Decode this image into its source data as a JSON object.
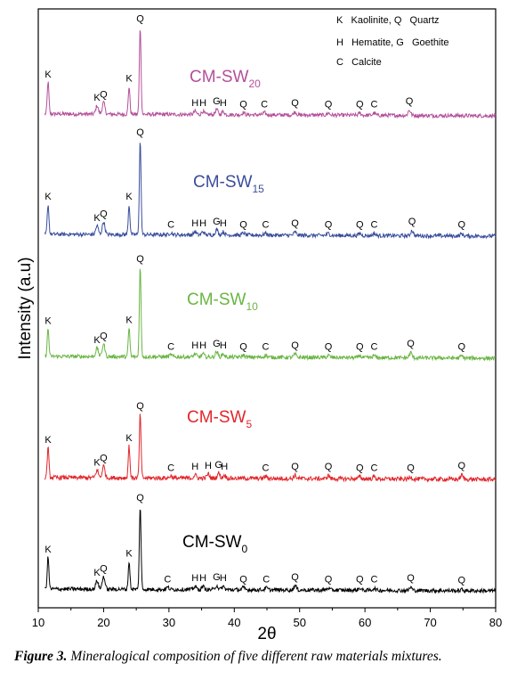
{
  "chart_data": {
    "type": "line",
    "title": "",
    "xlabel": "2θ",
    "ylabel": "Intensity (a.u)",
    "xlim": [
      10,
      80
    ],
    "xticks": [
      10,
      20,
      30,
      40,
      50,
      60,
      70,
      80
    ],
    "legend": {
      "placement": "top-right",
      "entries": [
        "K   Kaolinite, Q   Quartz",
        "H   Hematite, G   Goethite",
        "C   Calcite"
      ]
    },
    "series": [
      {
        "name": "CM-SW",
        "sub": "20",
        "color": "#b4509a",
        "baseline": 0.06,
        "noise": 0.018,
        "peaks": [
          {
            "x": 11.5,
            "h": 0.3,
            "label": "K"
          },
          {
            "x": 19.0,
            "h": 0.08,
            "label": "K"
          },
          {
            "x": 20.0,
            "h": 0.11,
            "label": "Q"
          },
          {
            "x": 23.9,
            "h": 0.26,
            "label": "K"
          },
          {
            "x": 25.6,
            "h": 0.82,
            "label": "Q"
          },
          {
            "x": 34.0,
            "h": 0.03,
            "label": "H"
          },
          {
            "x": 35.2,
            "h": 0.03,
            "label": "H"
          },
          {
            "x": 37.3,
            "h": 0.05,
            "label": "G"
          },
          {
            "x": 38.3,
            "h": 0.03,
            "label": "H"
          },
          {
            "x": 41.4,
            "h": 0.02,
            "label": "Q"
          },
          {
            "x": 44.6,
            "h": 0.02,
            "label": "C"
          },
          {
            "x": 49.3,
            "h": 0.03,
            "label": "Q"
          },
          {
            "x": 54.4,
            "h": 0.02,
            "label": "Q"
          },
          {
            "x": 59.2,
            "h": 0.02,
            "label": "Q"
          },
          {
            "x": 61.4,
            "h": 0.02,
            "label": "C"
          },
          {
            "x": 66.8,
            "h": 0.05,
            "label": "Q"
          }
        ]
      },
      {
        "name": "CM-SW",
        "sub": "15",
        "color": "#3a4d9b",
        "baseline": 0.06,
        "noise": 0.018,
        "peaks": [
          {
            "x": 11.5,
            "h": 0.28,
            "label": "K"
          },
          {
            "x": 19.0,
            "h": 0.08,
            "label": "K"
          },
          {
            "x": 20.0,
            "h": 0.12,
            "label": "Q"
          },
          {
            "x": 23.9,
            "h": 0.28,
            "label": "K"
          },
          {
            "x": 25.6,
            "h": 0.88,
            "label": "Q"
          },
          {
            "x": 30.3,
            "h": 0.02,
            "label": "C"
          },
          {
            "x": 34.0,
            "h": 0.03,
            "label": "H"
          },
          {
            "x": 35.2,
            "h": 0.03,
            "label": "H"
          },
          {
            "x": 37.3,
            "h": 0.05,
            "label": "G"
          },
          {
            "x": 38.3,
            "h": 0.03,
            "label": "H"
          },
          {
            "x": 41.4,
            "h": 0.02,
            "label": "Q"
          },
          {
            "x": 44.8,
            "h": 0.02,
            "label": "C"
          },
          {
            "x": 49.3,
            "h": 0.03,
            "label": "Q"
          },
          {
            "x": 54.4,
            "h": 0.02,
            "label": "Q"
          },
          {
            "x": 59.2,
            "h": 0.02,
            "label": "Q"
          },
          {
            "x": 61.4,
            "h": 0.02,
            "label": "C"
          },
          {
            "x": 67.2,
            "h": 0.05,
            "label": "Q"
          },
          {
            "x": 74.8,
            "h": 0.02,
            "label": "Q"
          }
        ]
      },
      {
        "name": "CM-SW",
        "sub": "10",
        "color": "#6ab544",
        "baseline": 0.06,
        "noise": 0.018,
        "peaks": [
          {
            "x": 11.5,
            "h": 0.26,
            "label": "K"
          },
          {
            "x": 19.0,
            "h": 0.08,
            "label": "K"
          },
          {
            "x": 20.0,
            "h": 0.12,
            "label": "Q"
          },
          {
            "x": 23.9,
            "h": 0.27,
            "label": "K"
          },
          {
            "x": 25.6,
            "h": 0.84,
            "label": "Q"
          },
          {
            "x": 30.3,
            "h": 0.02,
            "label": "C"
          },
          {
            "x": 34.0,
            "h": 0.03,
            "label": "H"
          },
          {
            "x": 35.2,
            "h": 0.03,
            "label": "H"
          },
          {
            "x": 37.3,
            "h": 0.05,
            "label": "G"
          },
          {
            "x": 38.3,
            "h": 0.03,
            "label": "H"
          },
          {
            "x": 41.4,
            "h": 0.02,
            "label": "Q"
          },
          {
            "x": 44.8,
            "h": 0.02,
            "label": "C"
          },
          {
            "x": 49.3,
            "h": 0.03,
            "label": "Q"
          },
          {
            "x": 54.4,
            "h": 0.02,
            "label": "Q"
          },
          {
            "x": 59.2,
            "h": 0.02,
            "label": "Q"
          },
          {
            "x": 61.4,
            "h": 0.02,
            "label": "C"
          },
          {
            "x": 67.0,
            "h": 0.05,
            "label": "Q"
          },
          {
            "x": 74.8,
            "h": 0.02,
            "label": "Q"
          }
        ]
      },
      {
        "name": "CM-SW",
        "sub": "5",
        "color": "#e2262b",
        "baseline": 0.06,
        "noise": 0.02,
        "peaks": [
          {
            "x": 11.5,
            "h": 0.28,
            "label": "K"
          },
          {
            "x": 19.0,
            "h": 0.07,
            "label": "K"
          },
          {
            "x": 20.0,
            "h": 0.11,
            "label": "Q"
          },
          {
            "x": 23.9,
            "h": 0.3,
            "label": "K"
          },
          {
            "x": 25.6,
            "h": 0.6,
            "label": "Q"
          },
          {
            "x": 30.3,
            "h": 0.02,
            "label": "C"
          },
          {
            "x": 34.0,
            "h": 0.03,
            "label": "H"
          },
          {
            "x": 36.0,
            "h": 0.04,
            "label": "H"
          },
          {
            "x": 37.6,
            "h": 0.05,
            "label": "G"
          },
          {
            "x": 38.5,
            "h": 0.03,
            "label": "H"
          },
          {
            "x": 44.8,
            "h": 0.02,
            "label": "C"
          },
          {
            "x": 49.3,
            "h": 0.03,
            "label": "Q"
          },
          {
            "x": 54.4,
            "h": 0.03,
            "label": "Q"
          },
          {
            "x": 59.2,
            "h": 0.02,
            "label": "Q"
          },
          {
            "x": 61.4,
            "h": 0.02,
            "label": "C"
          },
          {
            "x": 67.0,
            "h": 0.02,
            "label": "Q"
          },
          {
            "x": 74.8,
            "h": 0.04,
            "label": "Q"
          }
        ]
      },
      {
        "name": "CM-SW",
        "sub": "0",
        "color": "#000000",
        "baseline": 0.06,
        "noise": 0.018,
        "peaks": [
          {
            "x": 11.5,
            "h": 0.3,
            "label": "K"
          },
          {
            "x": 19.0,
            "h": 0.08,
            "label": "K"
          },
          {
            "x": 20.0,
            "h": 0.12,
            "label": "Q"
          },
          {
            "x": 23.9,
            "h": 0.26,
            "label": "K"
          },
          {
            "x": 25.6,
            "h": 0.78,
            "label": "Q"
          },
          {
            "x": 29.8,
            "h": 0.02,
            "label": "C"
          },
          {
            "x": 34.0,
            "h": 0.03,
            "label": "H"
          },
          {
            "x": 35.2,
            "h": 0.03,
            "label": "H"
          },
          {
            "x": 37.3,
            "h": 0.04,
            "label": "G"
          },
          {
            "x": 38.3,
            "h": 0.03,
            "label": "H"
          },
          {
            "x": 41.4,
            "h": 0.02,
            "label": "Q"
          },
          {
            "x": 44.9,
            "h": 0.02,
            "label": "C"
          },
          {
            "x": 49.3,
            "h": 0.04,
            "label": "Q"
          },
          {
            "x": 54.4,
            "h": 0.02,
            "label": "Q"
          },
          {
            "x": 59.2,
            "h": 0.02,
            "label": "Q"
          },
          {
            "x": 61.4,
            "h": 0.02,
            "label": "C"
          },
          {
            "x": 67.0,
            "h": 0.03,
            "label": "Q"
          },
          {
            "x": 74.8,
            "h": 0.01,
            "label": "Q"
          }
        ]
      }
    ]
  },
  "caption": {
    "label": "Figure 3.",
    "text": " Mineralogical composition of five different raw materials mixtures."
  }
}
